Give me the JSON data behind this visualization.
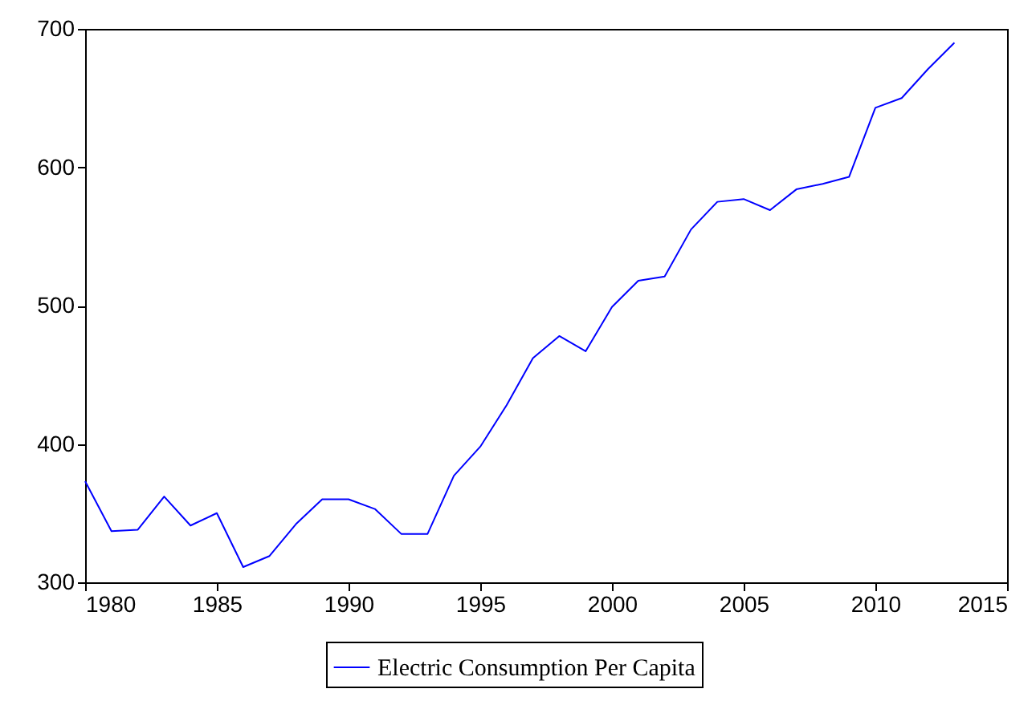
{
  "chart_data": {
    "type": "line",
    "x": [
      1980,
      1981,
      1982,
      1983,
      1984,
      1985,
      1986,
      1987,
      1988,
      1989,
      1990,
      1991,
      1992,
      1993,
      1994,
      1995,
      1996,
      1997,
      1998,
      1999,
      2000,
      2001,
      2002,
      2003,
      2004,
      2005,
      2006,
      2007,
      2008,
      2009,
      2010,
      2011,
      2012,
      2013
    ],
    "series": [
      {
        "name": "Electric Consumption Per Capita",
        "color": "#0000ff",
        "values": [
          373,
          337,
          338,
          362,
          341,
          350,
          311,
          319,
          342,
          360,
          360,
          353,
          335,
          335,
          377,
          398,
          428,
          462,
          478,
          467,
          499,
          518,
          521,
          555,
          575,
          577,
          569,
          584,
          588,
          593,
          643,
          650,
          671,
          690
        ]
      }
    ],
    "xlim": [
      1980,
      2015
    ],
    "xticks": [
      1980,
      1985,
      1990,
      1995,
      2000,
      2005,
      2010,
      2015
    ],
    "ylim": [
      300,
      700
    ],
    "yticks": [
      300,
      400,
      500,
      600,
      700
    ],
    "grid": false,
    "legend": "bottom"
  }
}
